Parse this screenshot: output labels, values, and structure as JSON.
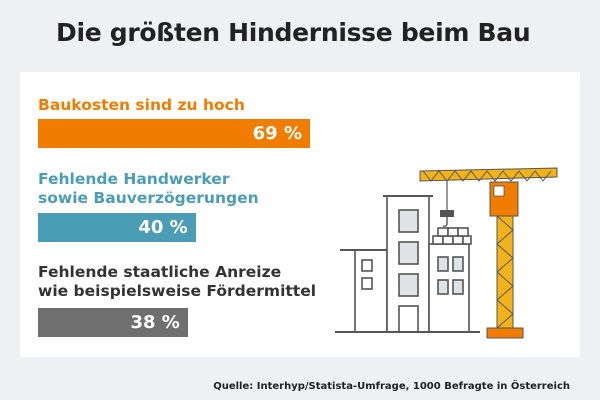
{
  "title": "Die größten Hindernisse beim Bau",
  "source": "Quelle: Interhyp/Statista-Umfrage, 1000 Befragte in Österreich",
  "chart_data": {
    "type": "bar",
    "orientation": "horizontal",
    "unit": "%",
    "bars": [
      {
        "line1": "Baukosten sind zu hoch",
        "line2": "",
        "value": 69,
        "display": "69 %",
        "color": "#f07d00"
      },
      {
        "line1": "Fehlende Handwerker",
        "line2": "sowie Bauverzögerungen",
        "value": 40,
        "display": "40 %",
        "color": "#4a9db5"
      },
      {
        "line1": "Fehlende staatliche Anreize",
        "line2": "wie beispielsweise Fördermittel",
        "value": 38,
        "display": "38 %",
        "color": "#6f6f6f"
      }
    ]
  },
  "illustration": {
    "name": "crane-and-house-illustration"
  }
}
